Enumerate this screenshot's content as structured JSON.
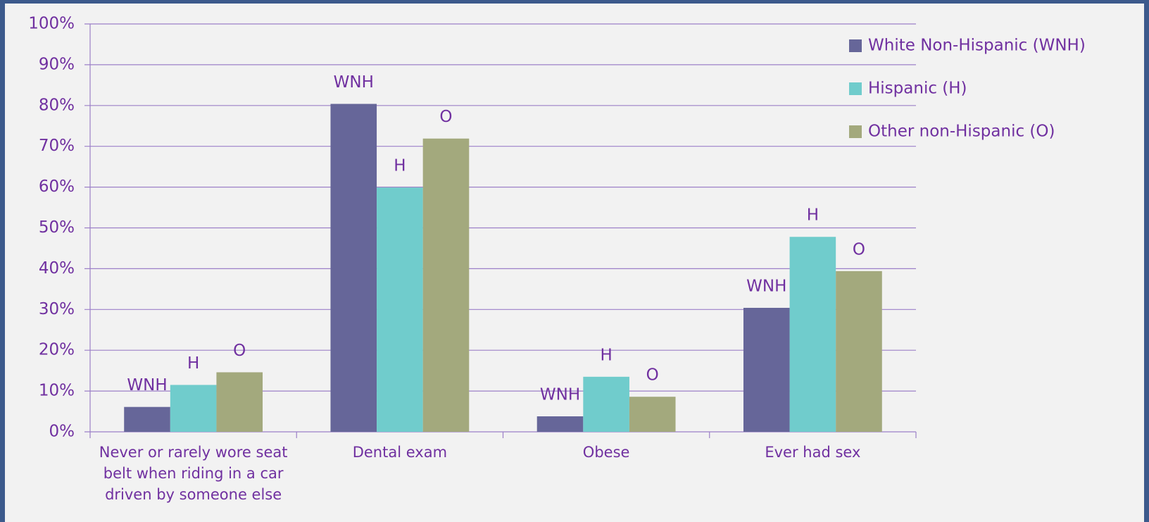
{
  "chart_data": {
    "type": "bar",
    "categories": [
      "Never or rarely wore seat belt when riding in a car driven by someone else",
      "Dental exam",
      "Obese",
      "Ever had sex"
    ],
    "series": [
      {
        "name": "White Non-Hispanic (WNH)",
        "short_name": "WNH",
        "color": "#666699",
        "values": [
          6.1,
          80.4,
          3.8,
          30.4
        ]
      },
      {
        "name": "Hispanic (H)",
        "short_name": "H",
        "color": "#70cccc",
        "values": [
          11.5,
          59.9,
          13.5,
          47.8
        ]
      },
      {
        "name": "Other non-Hispanic (O)",
        "short_name": "O",
        "color": "#a3a97d",
        "values": [
          14.6,
          71.9,
          8.6,
          39.4
        ]
      }
    ],
    "ylim": [
      0,
      100
    ],
    "yticks": [
      {
        "value": 0,
        "label": "0%"
      },
      {
        "value": 10,
        "label": "10%"
      },
      {
        "value": 20,
        "label": "20%"
      },
      {
        "value": 30,
        "label": "30%"
      },
      {
        "value": 40,
        "label": "40%"
      },
      {
        "value": 50,
        "label": "50%"
      },
      {
        "value": 60,
        "label": "60%"
      },
      {
        "value": 70,
        "label": "70%"
      },
      {
        "value": 80,
        "label": "80%"
      },
      {
        "value": 90,
        "label": "90%"
      },
      {
        "value": 100,
        "label": "100%"
      }
    ],
    "grid": true,
    "legend": "top-right"
  }
}
